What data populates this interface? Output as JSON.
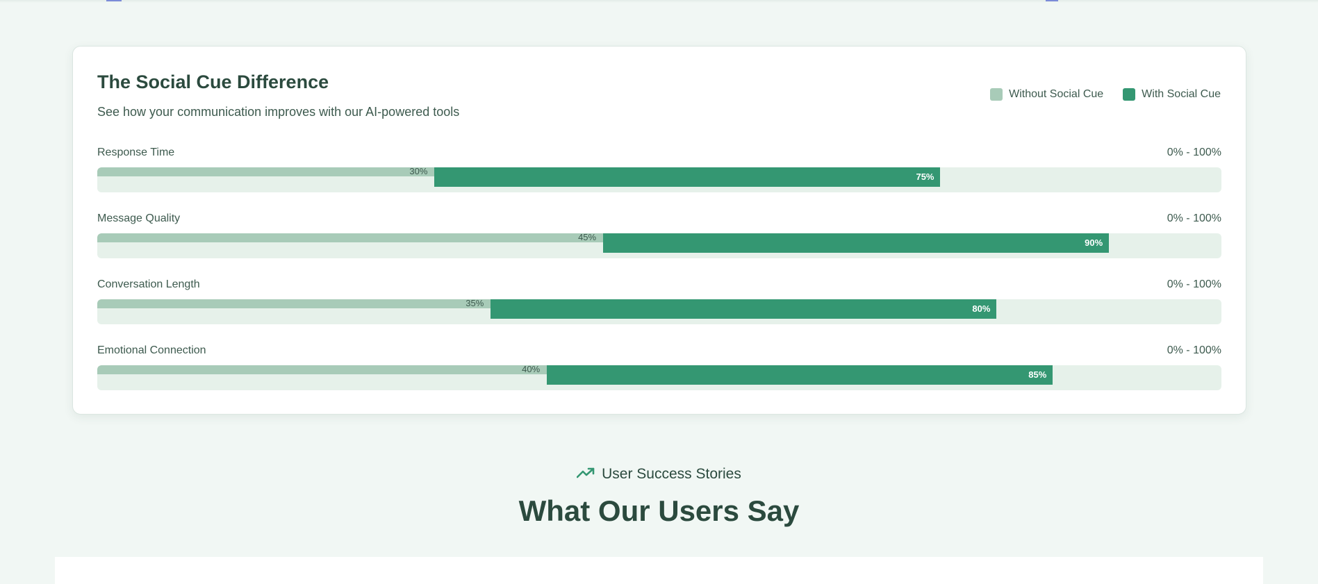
{
  "card": {
    "title": "The Social Cue Difference",
    "subtitle": "See how your communication improves with our AI-powered tools"
  },
  "legend": {
    "without_label": "Without Social Cue",
    "with_label": "With Social Cue",
    "without_color": "#a8cbb8",
    "with_color": "#349772"
  },
  "metrics": [
    {
      "label": "Response Time",
      "range": "0% - 100%",
      "without": 30,
      "with": 75,
      "without_text": "30%",
      "with_text": "75%"
    },
    {
      "label": "Message Quality",
      "range": "0% - 100%",
      "without": 45,
      "with": 90,
      "without_text": "45%",
      "with_text": "90%"
    },
    {
      "label": "Conversation Length",
      "range": "0% - 100%",
      "without": 35,
      "with": 80,
      "without_text": "35%",
      "with_text": "80%"
    },
    {
      "label": "Emotional Connection",
      "range": "0% - 100%",
      "without": 40,
      "with": 85,
      "without_text": "40%",
      "with_text": "85%"
    }
  ],
  "section": {
    "kicker_icon": "trending-up-icon",
    "kicker": "User Success Stories",
    "title": "What Our Users Say"
  }
}
